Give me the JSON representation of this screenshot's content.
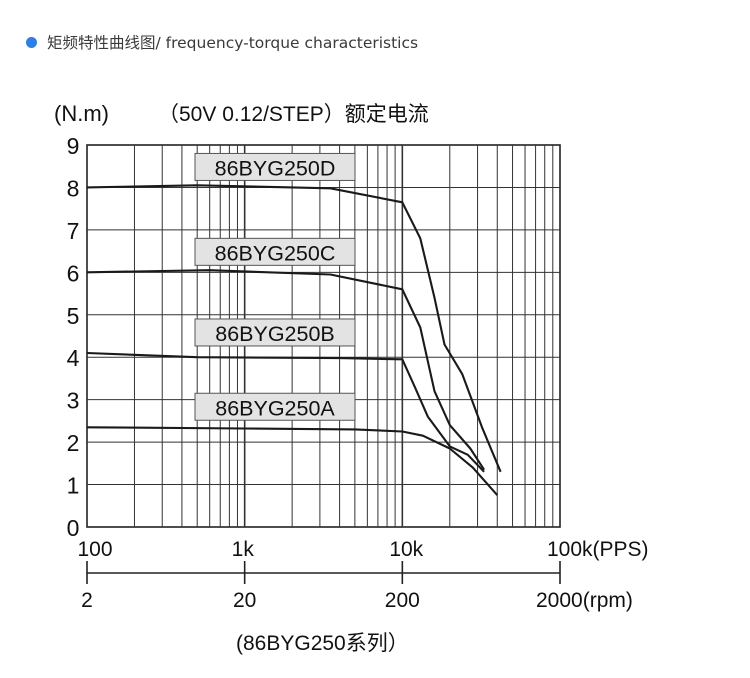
{
  "header": {
    "bullet_color": "#2d7fe0",
    "title": "矩频特性曲线图/ frequency-torque characteristics"
  },
  "chart_data": {
    "type": "line",
    "title": "（50V 0.12/STEP）额定电流",
    "y_unit": "(N.m)",
    "ylim": [
      0,
      9
    ],
    "yticks": [
      "0",
      "1",
      "2",
      "3",
      "4",
      "5",
      "6",
      "7",
      "8",
      "9"
    ],
    "x_scale": "log",
    "xlim": [
      100,
      100000
    ],
    "xtick_labels": [
      "100",
      "1k",
      "10k",
      "100k(PPS)"
    ],
    "rpm_axis": {
      "ticks": [
        "2",
        "20",
        "200",
        "2000(rpm)"
      ]
    },
    "footer": "(86BYG250系列）",
    "grid": true,
    "series": [
      {
        "name": "86BYG250D",
        "points": [
          [
            100,
            8.0
          ],
          [
            500,
            8.05
          ],
          [
            3500,
            7.98
          ],
          [
            10000,
            7.65
          ],
          [
            13000,
            6.8
          ],
          [
            16000,
            5.4
          ],
          [
            18500,
            4.3
          ],
          [
            24000,
            3.6
          ],
          [
            32000,
            2.35
          ],
          [
            42000,
            1.3
          ]
        ]
      },
      {
        "name": "86BYG250C",
        "points": [
          [
            100,
            6.0
          ],
          [
            600,
            6.05
          ],
          [
            3500,
            5.95
          ],
          [
            10000,
            5.6
          ],
          [
            13000,
            4.7
          ],
          [
            16000,
            3.2
          ],
          [
            20000,
            2.4
          ],
          [
            27000,
            1.85
          ],
          [
            33000,
            1.35
          ]
        ]
      },
      {
        "name": "86BYG250B",
        "points": [
          [
            100,
            4.1
          ],
          [
            500,
            4.0
          ],
          [
            4000,
            3.98
          ],
          [
            10000,
            3.95
          ],
          [
            12000,
            3.3
          ],
          [
            14500,
            2.6
          ],
          [
            20000,
            1.9
          ],
          [
            26000,
            1.7
          ],
          [
            33000,
            1.3
          ]
        ]
      },
      {
        "name": "86BYG250A",
        "points": [
          [
            100,
            2.35
          ],
          [
            1000,
            2.32
          ],
          [
            5000,
            2.3
          ],
          [
            10000,
            2.25
          ],
          [
            13500,
            2.15
          ],
          [
            20000,
            1.85
          ],
          [
            28000,
            1.4
          ],
          [
            40000,
            0.75
          ]
        ]
      }
    ]
  }
}
